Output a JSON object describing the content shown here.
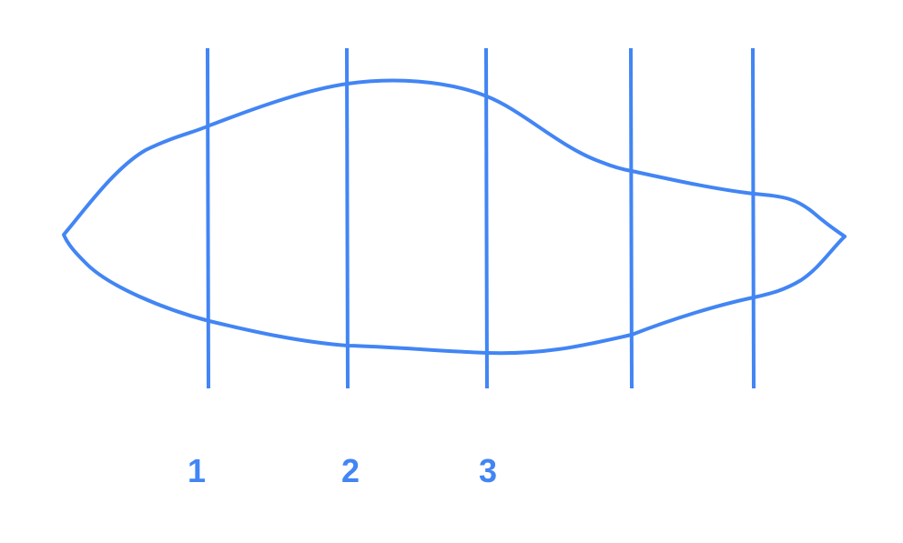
{
  "diagram": {
    "stroke_color": "#4285F4",
    "labels": [
      {
        "id": "1",
        "text": "1"
      },
      {
        "id": "2",
        "text": "2"
      },
      {
        "id": "3",
        "text": "3"
      }
    ]
  }
}
